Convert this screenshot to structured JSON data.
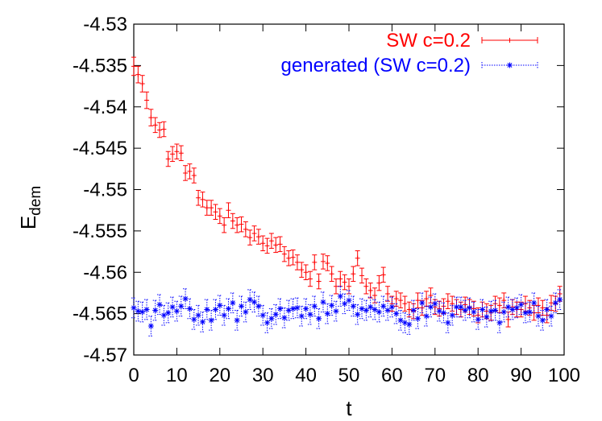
{
  "chart_data": {
    "type": "scatter",
    "title": "",
    "xlabel": "t",
    "ylabel": "E",
    "ylabel_subscript": "dem",
    "xlim": [
      0,
      100
    ],
    "ylim": [
      -4.57,
      -4.53
    ],
    "xticks": [
      0,
      10,
      20,
      30,
      40,
      50,
      60,
      70,
      80,
      90,
      100
    ],
    "xtick_labels": [
      "0",
      "10",
      "20",
      "30",
      "40",
      "50",
      "60",
      "70",
      "80",
      "90",
      "100"
    ],
    "yticks": [
      -4.57,
      -4.565,
      -4.56,
      -4.555,
      -4.55,
      -4.545,
      -4.54,
      -4.535,
      -4.53
    ],
    "ytick_labels": [
      "-4.57",
      "-4.565",
      "-4.56",
      "-4.555",
      "-4.55",
      "-4.545",
      "-4.54",
      "-4.535",
      "-4.53"
    ],
    "grid": false,
    "legend_position": "top-right",
    "series": [
      {
        "name": "SW c=0.2",
        "color": "#ff0000",
        "marker": "plus",
        "legend_line": "solid",
        "err": [
          0.0011,
          0.001,
          0.001,
          0.001,
          0.001,
          0.0009,
          0.0009,
          0.0009,
          0.0009,
          0.0009,
          0.0009,
          0.0009,
          0.0009,
          0.0009,
          0.0009,
          0.0009,
          0.0009,
          0.0009,
          0.0009,
          0.0009,
          0.0009,
          0.0009,
          0.0009,
          0.0009,
          0.0009,
          0.0009,
          0.0009,
          0.0009,
          0.0009,
          0.0009,
          0.0009,
          0.0009,
          0.0009,
          0.0009,
          0.0009,
          0.0009,
          0.0009,
          0.0009,
          0.0009,
          0.0009,
          0.0009,
          0.0009,
          0.0009,
          0.0009,
          0.0009,
          0.0009,
          0.0009,
          0.0009,
          0.0009,
          0.0009,
          0.0009,
          0.0009,
          0.0009,
          0.0009,
          0.0009,
          0.0009,
          0.0009,
          0.0009,
          0.0009,
          0.0009,
          0.0009,
          0.0009,
          0.0009,
          0.0009,
          0.0009,
          0.0009,
          0.0009,
          0.0009,
          0.0009,
          0.0009,
          0.0009,
          0.0009,
          0.0009,
          0.0009,
          0.0009,
          0.0009,
          0.0009,
          0.0009,
          0.0009,
          0.0009,
          0.0009,
          0.0009,
          0.0009,
          0.0009,
          0.0009,
          0.0009,
          0.0009,
          0.0009,
          0.0009,
          0.0009,
          0.0009,
          0.0009,
          0.0009,
          0.0009,
          0.0009,
          0.0009,
          0.0009,
          0.0009,
          0.0009,
          0.0009
        ],
        "x": [
          0,
          1,
          2,
          3,
          4,
          5,
          6,
          7,
          8,
          9,
          10,
          11,
          12,
          13,
          14,
          15,
          16,
          17,
          18,
          19,
          20,
          21,
          22,
          23,
          24,
          25,
          26,
          27,
          28,
          29,
          30,
          31,
          32,
          33,
          34,
          35,
          36,
          37,
          38,
          39,
          40,
          41,
          42,
          43,
          44,
          45,
          46,
          47,
          48,
          49,
          50,
          51,
          52,
          53,
          54,
          55,
          56,
          57,
          58,
          59,
          60,
          61,
          62,
          63,
          64,
          65,
          66,
          67,
          68,
          69,
          70,
          71,
          72,
          73,
          74,
          75,
          76,
          77,
          78,
          79,
          80,
          81,
          82,
          83,
          84,
          85,
          86,
          87,
          88,
          89,
          90,
          91,
          92,
          93,
          94,
          95,
          96,
          97,
          98,
          99
        ],
        "values": [
          -4.5351,
          -4.5361,
          -4.5372,
          -4.5392,
          -4.5413,
          -4.5422,
          -4.5428,
          -4.5427,
          -4.5463,
          -4.5457,
          -4.5454,
          -4.5456,
          -4.548,
          -4.5478,
          -4.5483,
          -4.551,
          -4.5512,
          -4.5522,
          -4.5522,
          -4.5527,
          -4.5532,
          -4.5543,
          -4.5525,
          -4.5538,
          -4.5543,
          -4.5542,
          -4.5548,
          -4.5558,
          -4.5553,
          -4.5557,
          -4.5565,
          -4.5568,
          -4.5562,
          -4.5567,
          -4.5566,
          -4.5578,
          -4.5583,
          -4.5582,
          -4.5588,
          -4.5597,
          -4.56,
          -4.5608,
          -4.5588,
          -4.5611,
          -4.5587,
          -4.5589,
          -4.5602,
          -4.5617,
          -4.5608,
          -4.5612,
          -4.5617,
          -4.5602,
          -4.5583,
          -4.5604,
          -4.5617,
          -4.5622,
          -4.5628,
          -4.5613,
          -4.5603,
          -4.5626,
          -4.5638,
          -4.5632,
          -4.5634,
          -4.5638,
          -4.5645,
          -4.5647,
          -4.5634,
          -4.5643,
          -4.5632,
          -4.5628,
          -4.5642,
          -4.5644,
          -4.5641,
          -4.5635,
          -4.5638,
          -4.5642,
          -4.5645,
          -4.5639,
          -4.5642,
          -4.5644,
          -4.5652,
          -4.5645,
          -4.5647,
          -4.5649,
          -4.5638,
          -4.564,
          -4.5634,
          -4.5657,
          -4.5642,
          -4.5645,
          -4.5645,
          -4.5638,
          -4.5643,
          -4.5649,
          -4.564,
          -4.5643,
          -4.5652,
          -4.5637,
          -4.5638,
          -4.5626
        ]
      },
      {
        "name": "generated (SW c=0.2)",
        "color": "#0000ff",
        "marker": "star",
        "legend_line": "dotted",
        "err": [
          0.0012,
          0.0012,
          0.0012,
          0.0012,
          0.0012,
          0.0012,
          0.0012,
          0.0012,
          0.0012,
          0.0012,
          0.0012,
          0.0012,
          0.0012,
          0.0012,
          0.0012,
          0.0012,
          0.0012,
          0.0012,
          0.0012,
          0.0012,
          0.0012,
          0.0012,
          0.0012,
          0.0012,
          0.0012,
          0.0012,
          0.0012,
          0.0012,
          0.0012,
          0.0012,
          0.0012,
          0.0012,
          0.0012,
          0.0012,
          0.0012,
          0.0012,
          0.0012,
          0.0012,
          0.0012,
          0.0012,
          0.0012,
          0.0012,
          0.0012,
          0.0012,
          0.0012,
          0.0012,
          0.0012,
          0.0012,
          0.0012,
          0.0012,
          0.0012,
          0.0012,
          0.0012,
          0.0012,
          0.0012,
          0.0012,
          0.0012,
          0.0012,
          0.0012,
          0.0012,
          0.0012,
          0.0012,
          0.0012,
          0.0012,
          0.0012,
          0.0012,
          0.0012,
          0.0012,
          0.0012,
          0.0012,
          0.0012,
          0.0012,
          0.0012,
          0.0012,
          0.0012,
          0.0012,
          0.0012,
          0.0012,
          0.0012,
          0.0012,
          0.0012,
          0.0012,
          0.0012,
          0.0012,
          0.0012,
          0.0012,
          0.0012,
          0.0012,
          0.0012,
          0.0012,
          0.0012,
          0.0012,
          0.0012,
          0.0012,
          0.0012,
          0.0012,
          0.0012,
          0.0012,
          0.0012,
          0.0012
        ],
        "x": [
          0,
          1,
          2,
          3,
          4,
          5,
          6,
          7,
          8,
          9,
          10,
          11,
          12,
          13,
          14,
          15,
          16,
          17,
          18,
          19,
          20,
          21,
          22,
          23,
          24,
          25,
          26,
          27,
          28,
          29,
          30,
          31,
          32,
          33,
          34,
          35,
          36,
          37,
          38,
          39,
          40,
          41,
          42,
          43,
          44,
          45,
          46,
          47,
          48,
          49,
          50,
          51,
          52,
          53,
          54,
          55,
          56,
          57,
          58,
          59,
          60,
          61,
          62,
          63,
          64,
          65,
          66,
          67,
          68,
          69,
          70,
          71,
          72,
          73,
          74,
          75,
          76,
          77,
          78,
          79,
          80,
          81,
          82,
          83,
          84,
          85,
          86,
          87,
          88,
          89,
          90,
          91,
          92,
          93,
          94,
          95,
          96,
          97,
          98,
          99
        ],
        "values": [
          -4.5643,
          -4.5647,
          -4.5648,
          -4.5645,
          -4.5665,
          -4.5646,
          -4.5639,
          -4.5652,
          -4.5649,
          -4.5642,
          -4.5647,
          -4.5641,
          -4.5632,
          -4.5644,
          -4.5657,
          -4.5652,
          -4.566,
          -4.5645,
          -4.5658,
          -4.5645,
          -4.564,
          -4.5652,
          -4.5644,
          -4.5637,
          -4.5658,
          -4.5641,
          -4.5648,
          -4.5633,
          -4.5636,
          -4.5641,
          -4.5652,
          -4.5661,
          -4.5656,
          -4.5651,
          -4.5644,
          -4.5655,
          -4.5646,
          -4.5644,
          -4.5643,
          -4.5653,
          -4.5644,
          -4.5651,
          -4.5641,
          -4.5656,
          -4.5636,
          -4.565,
          -4.564,
          -4.5647,
          -4.5629,
          -4.5638,
          -4.5634,
          -4.5641,
          -4.5651,
          -4.5644,
          -4.5646,
          -4.5642,
          -4.5645,
          -4.5648,
          -4.5641,
          -4.5646,
          -4.5642,
          -4.565,
          -4.5658,
          -4.5661,
          -4.5663,
          -4.5646,
          -4.5656,
          -4.5637,
          -4.5653,
          -4.5642,
          -4.5638,
          -4.5647,
          -4.5649,
          -4.5661,
          -4.5652,
          -4.5642,
          -4.5642,
          -4.5646,
          -4.5643,
          -4.5648,
          -4.5657,
          -4.5645,
          -4.5654,
          -4.5647,
          -4.5646,
          -4.5661,
          -4.5648,
          -4.5642,
          -4.5645,
          -4.5643,
          -4.5639,
          -4.5649,
          -4.5648,
          -4.5637,
          -4.5653,
          -4.5658,
          -4.5645,
          -4.5653,
          -4.5637,
          -4.5633
        ]
      }
    ]
  }
}
